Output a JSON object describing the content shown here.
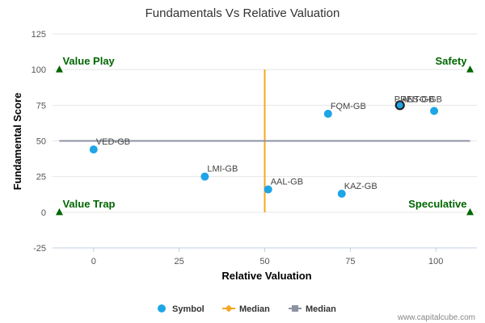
{
  "chart_data": {
    "type": "scatter",
    "title": "Fundamentals Vs Relative Valuation",
    "xlabel": "Relative Valuation",
    "ylabel": "Fundamental Score",
    "xlim": [
      -12,
      112
    ],
    "ylim": [
      -25,
      125
    ],
    "x_ticks": [
      "0",
      "25",
      "50",
      "75",
      "100"
    ],
    "x_tick_values": [
      0,
      25,
      50,
      75,
      100
    ],
    "y_ticks": [
      "-25",
      "0",
      "25",
      "50",
      "75",
      "100",
      "125"
    ],
    "y_tick_values": [
      -25,
      0,
      25,
      50,
      75,
      100,
      125
    ],
    "grid": "horizontal",
    "series": [
      {
        "name": "Symbol",
        "color": "#1ea5e6",
        "points": [
          {
            "label": "VED-GB",
            "x": 0,
            "y": 44
          },
          {
            "label": "LMI-GB",
            "x": 32.5,
            "y": 25
          },
          {
            "label": "AAL-GB",
            "x": 51,
            "y": 16
          },
          {
            "label": "FQM-GB",
            "x": 68.5,
            "y": 69
          },
          {
            "label": "KAZ-GB",
            "x": 72.5,
            "y": 13
          },
          {
            "label": "ANTO-GB",
            "x": 99.5,
            "y": 71
          },
          {
            "label": "PRES-GB",
            "x": 89.5,
            "y": 75,
            "highlight": true
          }
        ]
      },
      {
        "name": "Median",
        "color": "#f5a623",
        "line": {
          "x": [
            50,
            50
          ],
          "y": [
            0,
            100
          ]
        }
      },
      {
        "name": "Median",
        "color": "#8c93a1",
        "line": {
          "x": [
            -10,
            110
          ],
          "y": [
            50,
            50
          ]
        }
      }
    ],
    "quadrants": [
      {
        "label": "Value Play",
        "x": -10,
        "y": 100,
        "anchor": "start"
      },
      {
        "label": "Safety",
        "x": 110,
        "y": 100,
        "anchor": "end"
      },
      {
        "label": "Value Trap",
        "x": -10,
        "y": 0,
        "anchor": "start"
      },
      {
        "label": "Speculative",
        "x": 110,
        "y": 0,
        "anchor": "end"
      }
    ],
    "quadrant_color": "#006600",
    "legend": [
      "Symbol",
      "Median",
      "Median"
    ],
    "legend_position": "bottom-center",
    "credit": "www.capitalcube.com"
  }
}
